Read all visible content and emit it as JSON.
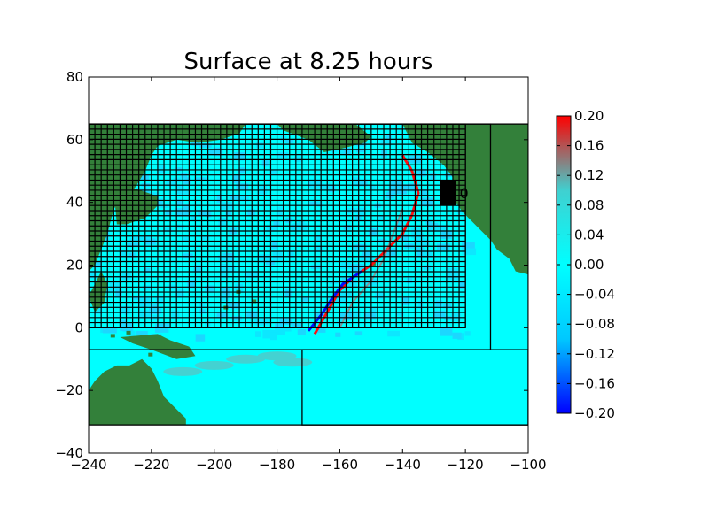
{
  "chart_data": {
    "type": "heatmap",
    "title": "Surface at 8.25 hours",
    "xlabel": "",
    "ylabel": "",
    "xlim": [
      -240,
      -100
    ],
    "ylim": [
      -40,
      80
    ],
    "x_ticks": [
      -240,
      -220,
      -200,
      -180,
      -160,
      -140,
      -120,
      -100
    ],
    "y_ticks": [
      -40,
      -20,
      0,
      20,
      40,
      60,
      80
    ],
    "x_tick_labels": [
      "−240",
      "−220",
      "−200",
      "−180",
      "−160",
      "−140",
      "−120",
      "−100"
    ],
    "y_tick_labels": [
      "−40",
      "−20",
      "0",
      "20",
      "40",
      "60",
      "80"
    ],
    "data_extent": {
      "lon": [
        -240,
        -100
      ],
      "lat": [
        -31,
        65
      ]
    },
    "colorbar": {
      "vmin": -0.2,
      "vmax": 0.2,
      "ticks": [
        -0.2,
        -0.16,
        -0.12,
        -0.08,
        -0.04,
        0.0,
        0.04,
        0.08,
        0.12,
        0.16,
        0.2
      ],
      "tick_labels": [
        "−0.20",
        "−0.16",
        "−0.12",
        "−0.08",
        "−0.04",
        "0.00",
        "0.04",
        "0.08",
        "0.12",
        "0.16",
        "0.20"
      ],
      "colors": [
        "#0000ff",
        "#00c8ff",
        "#00ffff",
        "#40d0d0",
        "#ff0000"
      ]
    },
    "colors": {
      "land": "#33803a",
      "ocean": "#00ffff",
      "grid": "#000000"
    },
    "gauge": {
      "label": "0",
      "lon_range": [
        -128,
        -123
      ],
      "lat_range": [
        39,
        47
      ]
    },
    "amr_patches": [
      {
        "level": 1,
        "lon": [
          -240,
          -100
        ],
        "lat": [
          -31,
          65
        ]
      },
      {
        "level": 2,
        "lon": [
          -172,
          -100
        ],
        "lat": [
          -31,
          -7
        ]
      },
      {
        "level": 2,
        "lon": [
          -240,
          -112
        ],
        "lat": [
          -7,
          65
        ]
      },
      {
        "level": 3,
        "lon": [
          -240,
          -120
        ],
        "lat": [
          0,
          65
        ]
      }
    ]
  }
}
